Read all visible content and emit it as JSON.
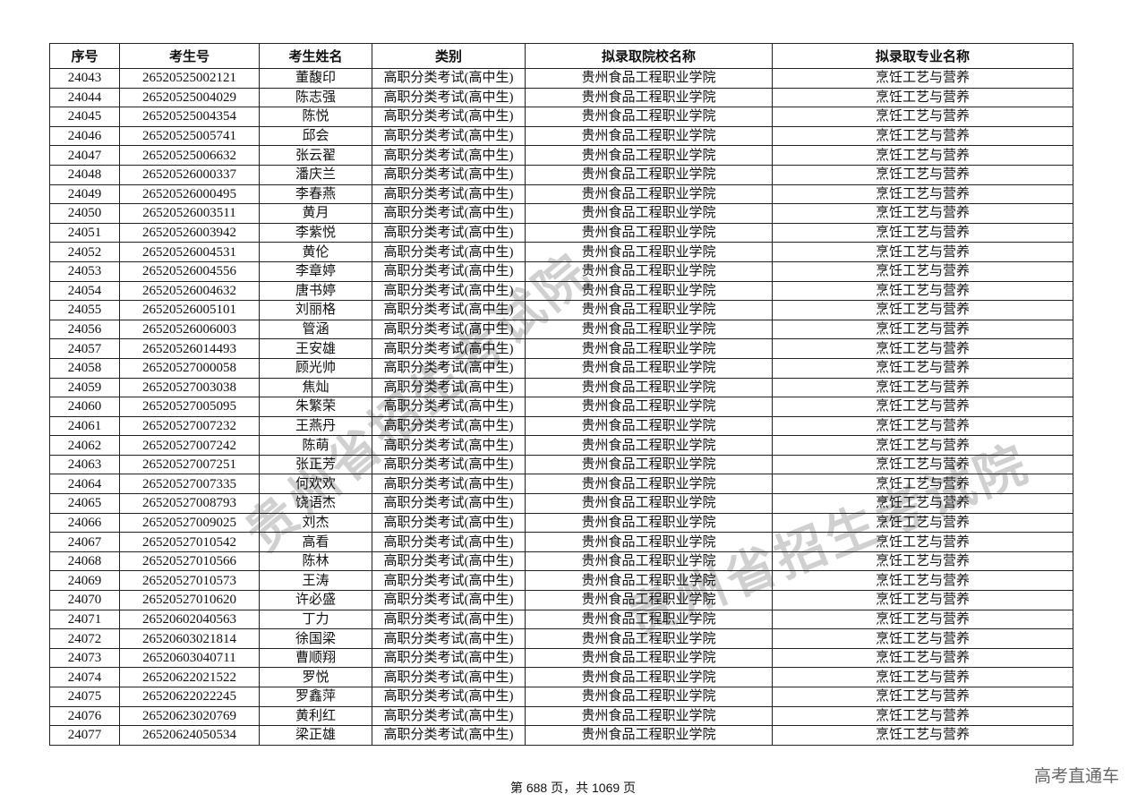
{
  "table": {
    "headers": [
      "序号",
      "考生号",
      "考生姓名",
      "类别",
      "拟录取院校名称",
      "拟录取专业名称"
    ],
    "rows": [
      [
        "24043",
        "26520525002121",
        "董馥印",
        "高职分类考试(高中生)",
        "贵州食品工程职业学院",
        "烹饪工艺与营养"
      ],
      [
        "24044",
        "26520525004029",
        "陈志强",
        "高职分类考试(高中生)",
        "贵州食品工程职业学院",
        "烹饪工艺与营养"
      ],
      [
        "24045",
        "26520525004354",
        "陈悦",
        "高职分类考试(高中生)",
        "贵州食品工程职业学院",
        "烹饪工艺与营养"
      ],
      [
        "24046",
        "26520525005741",
        "邱会",
        "高职分类考试(高中生)",
        "贵州食品工程职业学院",
        "烹饪工艺与营养"
      ],
      [
        "24047",
        "26520525006632",
        "张云翟",
        "高职分类考试(高中生)",
        "贵州食品工程职业学院",
        "烹饪工艺与营养"
      ],
      [
        "24048",
        "26520526000337",
        "潘庆兰",
        "高职分类考试(高中生)",
        "贵州食品工程职业学院",
        "烹饪工艺与营养"
      ],
      [
        "24049",
        "26520526000495",
        "李春燕",
        "高职分类考试(高中生)",
        "贵州食品工程职业学院",
        "烹饪工艺与营养"
      ],
      [
        "24050",
        "26520526003511",
        "黄月",
        "高职分类考试(高中生)",
        "贵州食品工程职业学院",
        "烹饪工艺与营养"
      ],
      [
        "24051",
        "26520526003942",
        "李紫悦",
        "高职分类考试(高中生)",
        "贵州食品工程职业学院",
        "烹饪工艺与营养"
      ],
      [
        "24052",
        "26520526004531",
        "黄伦",
        "高职分类考试(高中生)",
        "贵州食品工程职业学院",
        "烹饪工艺与营养"
      ],
      [
        "24053",
        "26520526004556",
        "李章婷",
        "高职分类考试(高中生)",
        "贵州食品工程职业学院",
        "烹饪工艺与营养"
      ],
      [
        "24054",
        "26520526004632",
        "唐书婷",
        "高职分类考试(高中生)",
        "贵州食品工程职业学院",
        "烹饪工艺与营养"
      ],
      [
        "24055",
        "26520526005101",
        "刘丽格",
        "高职分类考试(高中生)",
        "贵州食品工程职业学院",
        "烹饪工艺与营养"
      ],
      [
        "24056",
        "26520526006003",
        "管涵",
        "高职分类考试(高中生)",
        "贵州食品工程职业学院",
        "烹饪工艺与营养"
      ],
      [
        "24057",
        "26520526014493",
        "王安雄",
        "高职分类考试(高中生)",
        "贵州食品工程职业学院",
        "烹饪工艺与营养"
      ],
      [
        "24058",
        "26520527000058",
        "顾光帅",
        "高职分类考试(高中生)",
        "贵州食品工程职业学院",
        "烹饪工艺与营养"
      ],
      [
        "24059",
        "26520527003038",
        "焦灿",
        "高职分类考试(高中生)",
        "贵州食品工程职业学院",
        "烹饪工艺与营养"
      ],
      [
        "24060",
        "26520527005095",
        "朱繁荣",
        "高职分类考试(高中生)",
        "贵州食品工程职业学院",
        "烹饪工艺与营养"
      ],
      [
        "24061",
        "26520527007232",
        "王燕丹",
        "高职分类考试(高中生)",
        "贵州食品工程职业学院",
        "烹饪工艺与营养"
      ],
      [
        "24062",
        "26520527007242",
        "陈萌",
        "高职分类考试(高中生)",
        "贵州食品工程职业学院",
        "烹饪工艺与营养"
      ],
      [
        "24063",
        "26520527007251",
        "张正芳",
        "高职分类考试(高中生)",
        "贵州食品工程职业学院",
        "烹饪工艺与营养"
      ],
      [
        "24064",
        "26520527007335",
        "何欢欢",
        "高职分类考试(高中生)",
        "贵州食品工程职业学院",
        "烹饪工艺与营养"
      ],
      [
        "24065",
        "26520527008793",
        "饶语杰",
        "高职分类考试(高中生)",
        "贵州食品工程职业学院",
        "烹饪工艺与营养"
      ],
      [
        "24066",
        "26520527009025",
        "刘杰",
        "高职分类考试(高中生)",
        "贵州食品工程职业学院",
        "烹饪工艺与营养"
      ],
      [
        "24067",
        "26520527010542",
        "高看",
        "高职分类考试(高中生)",
        "贵州食品工程职业学院",
        "烹饪工艺与营养"
      ],
      [
        "24068",
        "26520527010566",
        "陈林",
        "高职分类考试(高中生)",
        "贵州食品工程职业学院",
        "烹饪工艺与营养"
      ],
      [
        "24069",
        "26520527010573",
        "王涛",
        "高职分类考试(高中生)",
        "贵州食品工程职业学院",
        "烹饪工艺与营养"
      ],
      [
        "24070",
        "26520527010620",
        "许必盛",
        "高职分类考试(高中生)",
        "贵州食品工程职业学院",
        "烹饪工艺与营养"
      ],
      [
        "24071",
        "26520602040563",
        "丁力",
        "高职分类考试(高中生)",
        "贵州食品工程职业学院",
        "烹饪工艺与营养"
      ],
      [
        "24072",
        "26520603021814",
        "徐国梁",
        "高职分类考试(高中生)",
        "贵州食品工程职业学院",
        "烹饪工艺与营养"
      ],
      [
        "24073",
        "26520603040711",
        "曹顺翔",
        "高职分类考试(高中生)",
        "贵州食品工程职业学院",
        "烹饪工艺与营养"
      ],
      [
        "24074",
        "26520622021522",
        "罗悦",
        "高职分类考试(高中生)",
        "贵州食品工程职业学院",
        "烹饪工艺与营养"
      ],
      [
        "24075",
        "26520622022245",
        "罗鑫萍",
        "高职分类考试(高中生)",
        "贵州食品工程职业学院",
        "烹饪工艺与营养"
      ],
      [
        "24076",
        "26520623020769",
        "黄利红",
        "高职分类考试(高中生)",
        "贵州食品工程职业学院",
        "烹饪工艺与营养"
      ],
      [
        "24077",
        "26520624050534",
        "梁正雄",
        "高职分类考试(高中生)",
        "贵州食品工程职业学院",
        "烹饪工艺与营养"
      ]
    ]
  },
  "footer": {
    "page_text": "第 688 页，共 1069 页"
  },
  "brand": "高考直通车",
  "watermark": "贵州省招生考试院"
}
